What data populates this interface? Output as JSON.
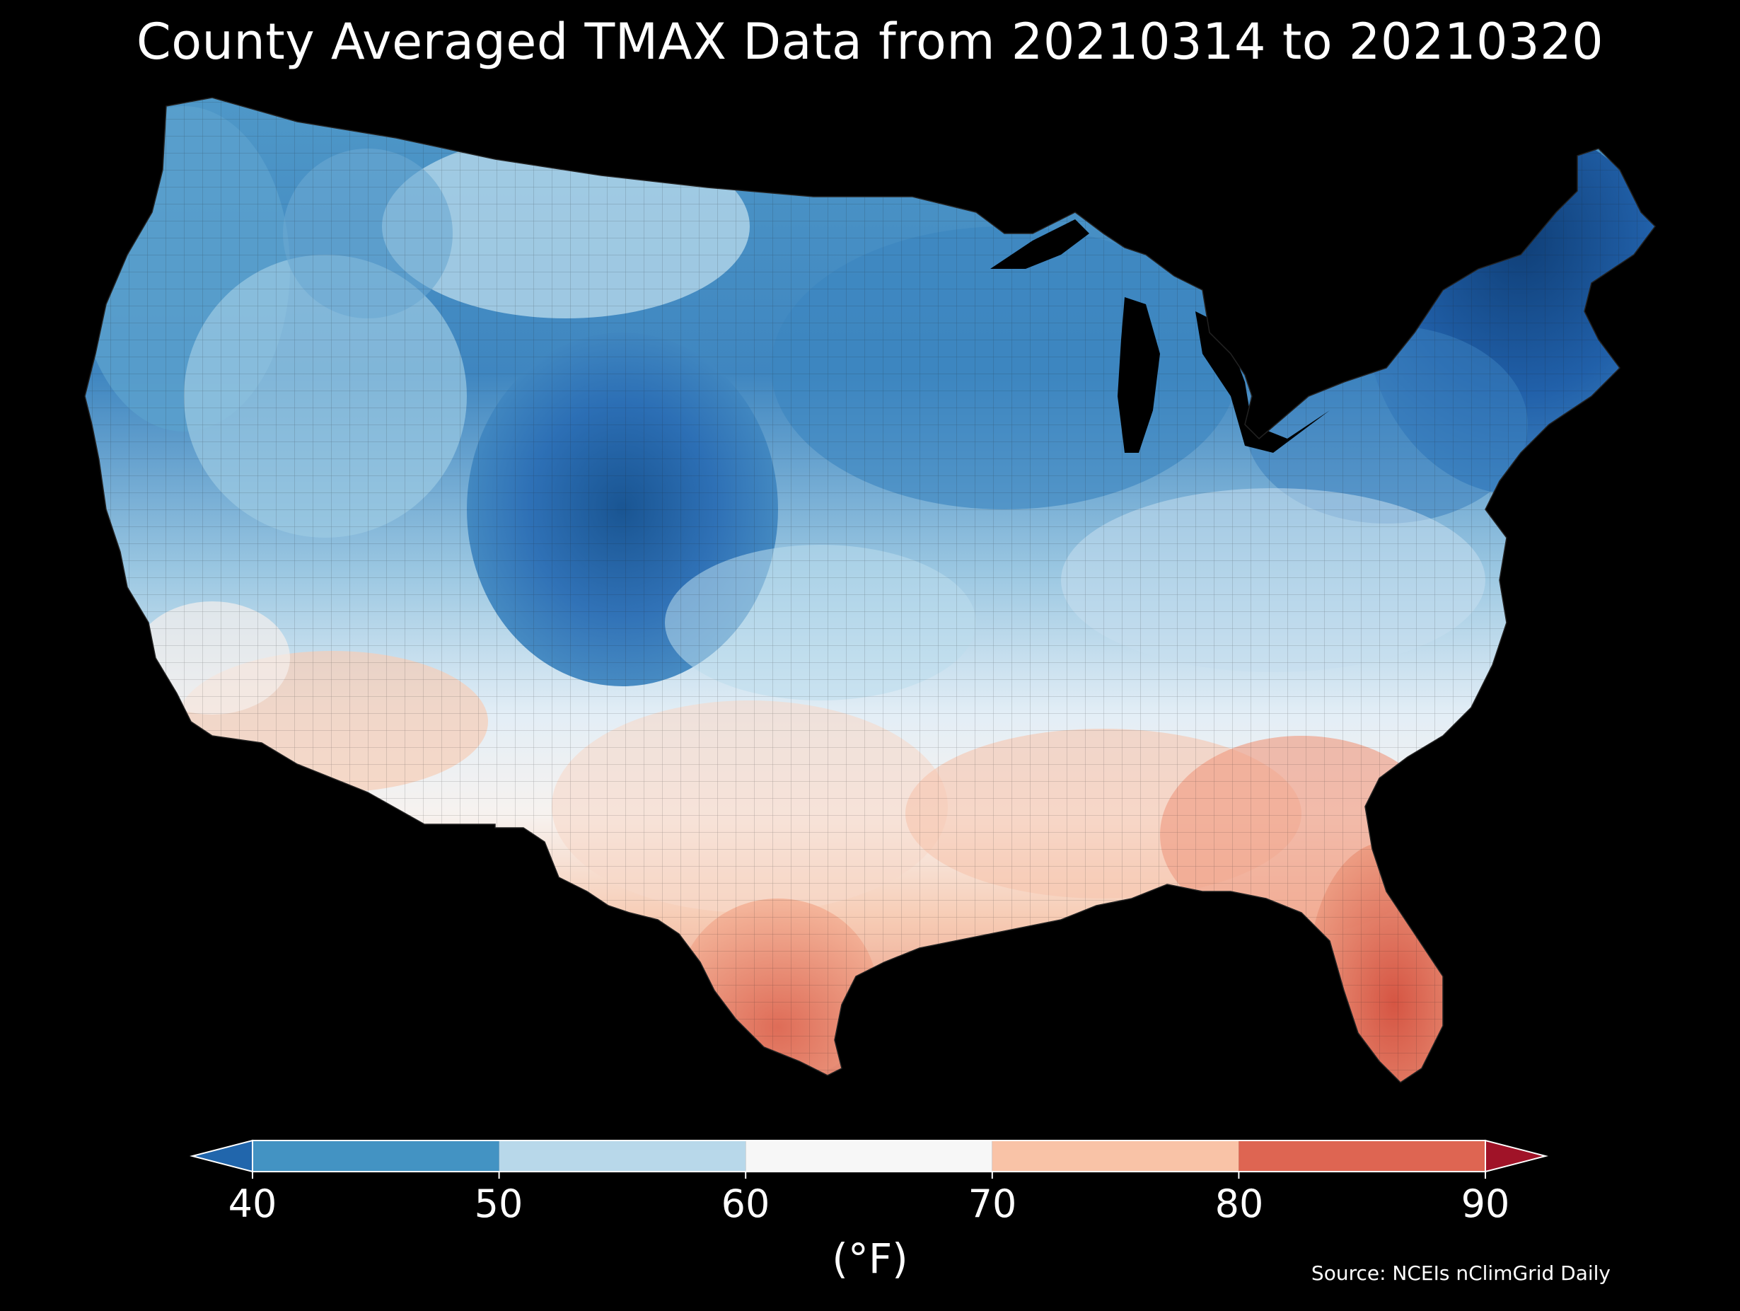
{
  "title": "County Averaged TMAX Data from 20210314 to 20210320",
  "source": "Source: NCEIs nClimGrid Daily",
  "colorbar": {
    "unit_label": "(°F)",
    "ticks": [
      "40",
      "50",
      "60",
      "70",
      "80",
      "90"
    ],
    "bins": [
      {
        "range": "<40",
        "color": "#2166ac"
      },
      {
        "range": "40-50",
        "color": "#4393c3"
      },
      {
        "range": "50-60",
        "color": "#b8d8ea"
      },
      {
        "range": "60-70",
        "color": "#f7f7f7"
      },
      {
        "range": "70-80",
        "color": "#f9c3a7"
      },
      {
        "range": "80-90",
        "color": "#de6552"
      },
      {
        "range": ">90",
        "color": "#a01328"
      }
    ]
  },
  "map": {
    "region": "Contiguous United States",
    "variable": "TMAX",
    "regions": [
      {
        "name": "maine-northern-new-england",
        "value_f": 36
      },
      {
        "name": "new-england-new-york",
        "value_f": 42
      },
      {
        "name": "pacific-northwest",
        "value_f": 48
      },
      {
        "name": "northern-great-basin",
        "value_f": 53
      },
      {
        "name": "montana-idaho-highlands",
        "value_f": 47
      },
      {
        "name": "northern-plains",
        "value_f": 55
      },
      {
        "name": "wyoming-colorado-rockies",
        "value_f": 40
      },
      {
        "name": "upper-midwest-great-lakes",
        "value_f": 46
      },
      {
        "name": "ohio-valley-mid-atlantic",
        "value_f": 58
      },
      {
        "name": "central-plains-kansas",
        "value_f": 59
      },
      {
        "name": "southwest-desert",
        "value_f": 70
      },
      {
        "name": "southern-california",
        "value_f": 66
      },
      {
        "name": "texas-oklahoma",
        "value_f": 69
      },
      {
        "name": "south-texas",
        "value_f": 82
      },
      {
        "name": "deep-south",
        "value_f": 72
      },
      {
        "name": "georgia-carolinas",
        "value_f": 76
      },
      {
        "name": "florida-peninsula",
        "value_f": 84
      }
    ]
  }
}
